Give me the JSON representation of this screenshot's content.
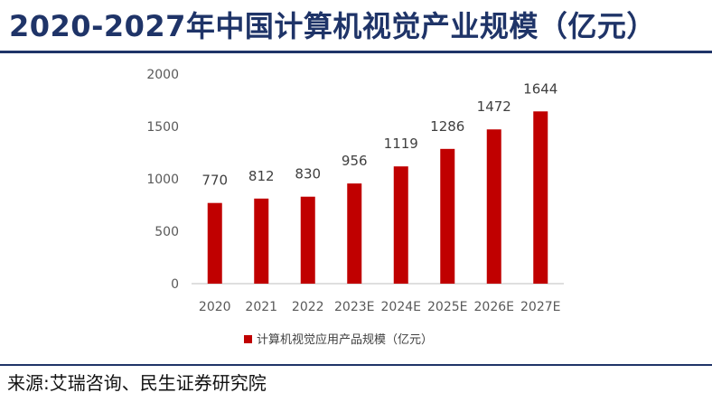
{
  "title": "2020-2027年中国计算机视觉产业规模（亿元）",
  "source": "来源:艾瑞咨询、民生证券研究院",
  "colors": {
    "bar": "#c00000",
    "title": "#1f3468",
    "rule": "#1f3468",
    "axis": "#bfbfbf"
  },
  "chart_data": {
    "type": "bar",
    "categories": [
      "2020",
      "2021",
      "2022",
      "2023E",
      "2024E",
      "2025E",
      "2026E",
      "2027E"
    ],
    "series": [
      {
        "name": "计算机视觉应用产品规模（亿元）",
        "values": [
          770,
          812,
          830,
          956,
          1119,
          1286,
          1472,
          1644
        ]
      }
    ],
    "ylim": [
      0,
      2000
    ],
    "yticks": [
      0,
      500,
      1000,
      1500,
      2000
    ],
    "grid": false,
    "legend_position": "bottom"
  }
}
